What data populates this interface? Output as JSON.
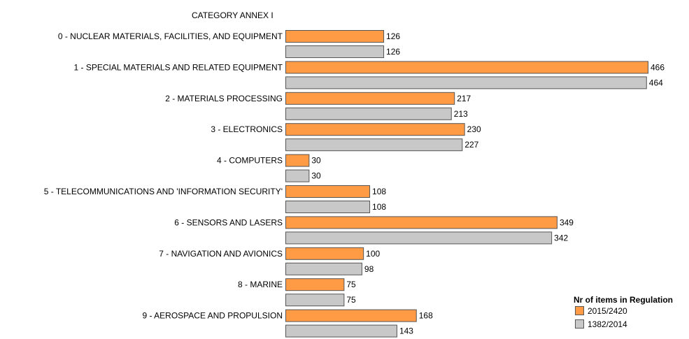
{
  "chart_data": {
    "type": "bar",
    "orientation": "horizontal",
    "header": "CATEGORY ANNEX I",
    "categories": [
      "0 - NUCLEAR MATERIALS, FACILITIES, AND EQUIPMENT",
      "1 - SPECIAL MATERIALS AND RELATED EQUIPMENT",
      "2 - MATERIALS PROCESSING",
      "3 - ELECTRONICS",
      "4 - COMPUTERS",
      "5 - TELECOMMUNICATIONS AND 'INFORMATION SECURITY'",
      "6 - SENSORS AND LASERS",
      "7 - NAVIGATION AND AVIONICS",
      "8 - MARINE",
      "9 - AEROSPACE AND PROPULSION"
    ],
    "series": [
      {
        "name": "2015/2420",
        "color": "#FF9A45",
        "values": [
          126,
          466,
          217,
          230,
          30,
          108,
          349,
          100,
          75,
          168
        ]
      },
      {
        "name": "1382/2014",
        "color": "#C8C8C8",
        "values": [
          126,
          464,
          213,
          227,
          30,
          108,
          342,
          98,
          75,
          143
        ]
      }
    ],
    "legend_title": "Nr of items in Regulation",
    "legend_position": "bottom-right",
    "xlim": [
      0,
      466
    ],
    "grid": false,
    "data_labels": true
  }
}
